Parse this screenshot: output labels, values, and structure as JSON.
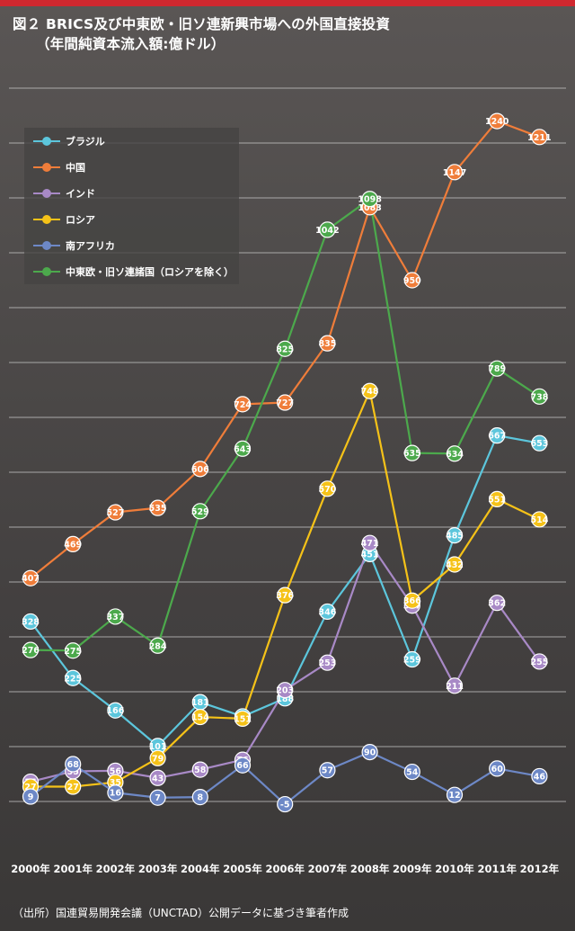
{
  "header": {
    "title_line1": "図２ BRICS及び中東欧・旧ソ連新興市場への外国直接投資",
    "title_line2": "（年間純資本流入額:億ドル）"
  },
  "footer": {
    "source": "（出所）国連貿易開発会議（UNCTAD）公開データに基づき筆者作成"
  },
  "colors": {
    "accent_bar": "#d0282f",
    "gridline": "#c9c9c9"
  },
  "chart_data": {
    "type": "line",
    "categories": [
      "2000年",
      "2001年",
      "2002年",
      "2003年",
      "2004年",
      "2005年",
      "2006年",
      "2007年",
      "2008年",
      "2009年",
      "2010年",
      "2011年",
      "2012年"
    ],
    "ylim": [
      -100,
      1350
    ],
    "grid": true,
    "legend_position": "top-left",
    "series": [
      {
        "name": "ブラジル",
        "color": "#5cc6dc",
        "label_color": "#ffffff",
        "values": [
          328,
          225,
          166,
          101,
          181,
          155,
          188,
          346,
          451,
          259,
          485,
          667,
          653
        ]
      },
      {
        "name": "中国",
        "color": "#ef7d3a",
        "label_color": "#ffffff",
        "values": [
          407,
          469,
          527,
          535,
          606,
          724,
          727,
          835,
          1083,
          950,
          1147,
          1240,
          1211
        ]
      },
      {
        "name": "インド",
        "color": "#a889c6",
        "label_color": "#ffffff",
        "values": [
          36,
          55,
          56,
          43,
          58,
          76,
          203,
          253,
          471,
          357,
          211,
          362,
          255
        ]
      },
      {
        "name": "ロシア",
        "color": "#f5c218",
        "label_color": "#ffffff",
        "values": [
          27,
          27,
          35,
          79,
          154,
          151,
          376,
          570,
          748,
          366,
          432,
          551,
          514
        ]
      },
      {
        "name": "南アフリカ",
        "color": "#6d88c6",
        "label_color": "#ffffff",
        "values": [
          9,
          68,
          16,
          7,
          8,
          66,
          -5,
          57,
          90,
          54,
          12,
          60,
          46
        ]
      },
      {
        "name": "中東欧・旧ソ連諸国（ロシアを除く）",
        "color": "#4ca94c",
        "label_color": "#ffffff",
        "values": [
          276,
          275,
          337,
          284,
          529,
          643,
          825,
          1042,
          1098,
          635,
          634,
          789,
          738
        ]
      }
    ]
  }
}
